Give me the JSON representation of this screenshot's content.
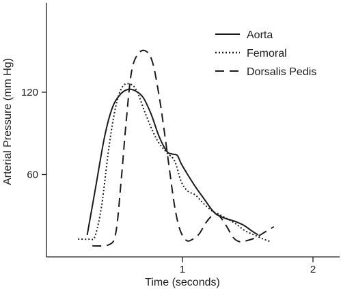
{
  "chart_data": {
    "type": "line",
    "title": "",
    "xlabel": "Time (seconds)",
    "ylabel": "Arterial Pressure (mm Hg)",
    "xlim": [
      -0.2,
      2.2
    ],
    "ylim": [
      0,
      182
    ],
    "x_ticks": [
      1,
      2
    ],
    "x_tick_labels": [
      "1",
      "2"
    ],
    "y_ticks": [
      60,
      120
    ],
    "y_tick_labels": [
      "60",
      "120"
    ],
    "grid": false,
    "legend_position": "top-right",
    "series": [
      {
        "name": "Aorta",
        "style": "solid",
        "color": "#1a1a1a",
        "points": [
          [
            0.27,
            16
          ],
          [
            0.33,
            48
          ],
          [
            0.4,
            86
          ],
          [
            0.46,
            108
          ],
          [
            0.52,
            118
          ],
          [
            0.58,
            122
          ],
          [
            0.64,
            121
          ],
          [
            0.7,
            116
          ],
          [
            0.76,
            104
          ],
          [
            0.82,
            88
          ],
          [
            0.88,
            77
          ],
          [
            0.92,
            75
          ],
          [
            0.96,
            74
          ],
          [
            0.99,
            68
          ],
          [
            1.04,
            60
          ],
          [
            1.1,
            51
          ],
          [
            1.16,
            43
          ],
          [
            1.22,
            35
          ],
          [
            1.26,
            31
          ],
          [
            1.33,
            28
          ],
          [
            1.4,
            26
          ],
          [
            1.47,
            23
          ],
          [
            1.53,
            19
          ],
          [
            1.58,
            16
          ]
        ]
      },
      {
        "name": "Femoral",
        "style": "dotted",
        "color": "#1a1a1a",
        "points": [
          [
            0.2,
            13
          ],
          [
            0.29,
            13
          ],
          [
            0.33,
            15
          ],
          [
            0.38,
            37
          ],
          [
            0.44,
            82
          ],
          [
            0.49,
            110
          ],
          [
            0.54,
            124
          ],
          [
            0.6,
            126
          ],
          [
            0.65,
            121
          ],
          [
            0.71,
            106
          ],
          [
            0.77,
            92
          ],
          [
            0.82,
            83
          ],
          [
            0.88,
            76
          ],
          [
            0.94,
            70
          ],
          [
            0.99,
            55
          ],
          [
            1.04,
            48
          ],
          [
            1.1,
            45
          ],
          [
            1.16,
            39
          ],
          [
            1.22,
            34
          ],
          [
            1.28,
            31
          ],
          [
            1.34,
            28
          ],
          [
            1.41,
            24
          ],
          [
            1.48,
            19
          ],
          [
            1.55,
            16
          ],
          [
            1.62,
            13
          ],
          [
            1.68,
            11
          ]
        ]
      },
      {
        "name": "Dorsalis Pedis",
        "style": "dashed",
        "color": "#1a1a1a",
        "points": [
          [
            0.31,
            8
          ],
          [
            0.44,
            9
          ],
          [
            0.49,
            18
          ],
          [
            0.53,
            55
          ],
          [
            0.57,
            100
          ],
          [
            0.61,
            135
          ],
          [
            0.66,
            148
          ],
          [
            0.72,
            150
          ],
          [
            0.77,
            142
          ],
          [
            0.82,
            118
          ],
          [
            0.86,
            92
          ],
          [
            0.9,
            64
          ],
          [
            0.94,
            37
          ],
          [
            0.98,
            20
          ],
          [
            1.03,
            12
          ],
          [
            1.08,
            13
          ],
          [
            1.13,
            17
          ],
          [
            1.18,
            25
          ],
          [
            1.23,
            30
          ],
          [
            1.28,
            30
          ],
          [
            1.34,
            22
          ],
          [
            1.39,
            14
          ],
          [
            1.44,
            11
          ],
          [
            1.5,
            12
          ],
          [
            1.56,
            14
          ],
          [
            1.63,
            18
          ],
          [
            1.7,
            22
          ]
        ]
      }
    ]
  }
}
